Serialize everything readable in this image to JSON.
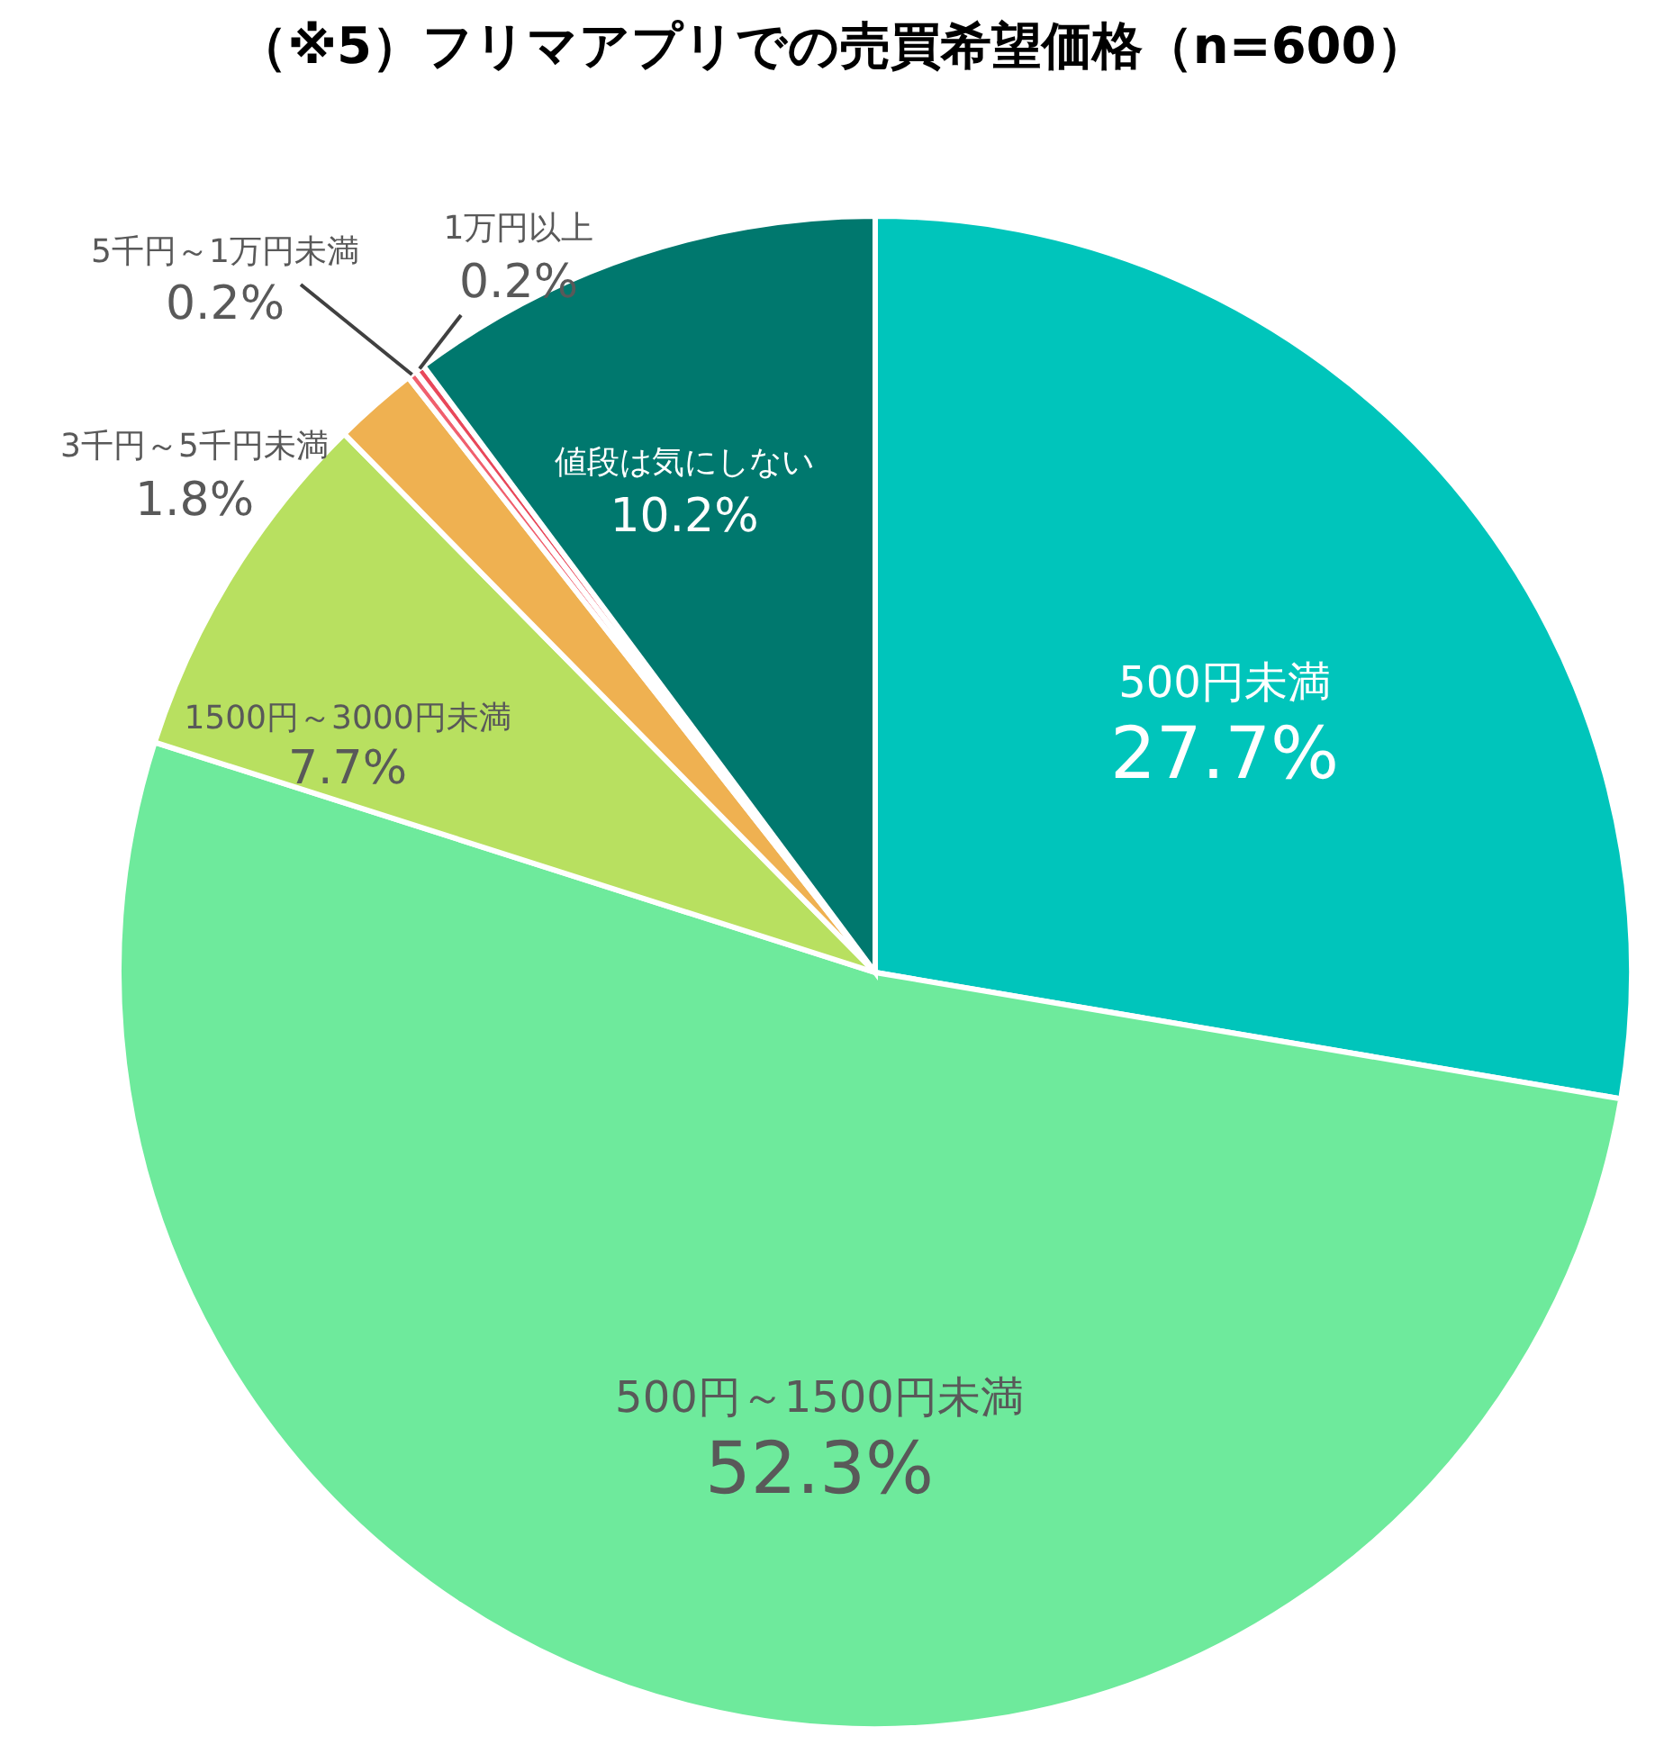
{
  "chart_data": {
    "type": "pie",
    "title": "（※5）フリマアプリでの売買希望価格（n=600）",
    "categories": [
      "500円未満",
      "500円～1500円未満",
      "1500円～3000円未満",
      "3千円～5千円未満",
      "5千円～1万円未満",
      "1万円以上",
      "値段は気にしない"
    ],
    "values": [
      27.7,
      52.3,
      7.7,
      1.8,
      0.2,
      0.2,
      10.2
    ],
    "colors": [
      "#00c5bb",
      "#6eea9c",
      "#b8e060",
      "#efb151",
      "#f0606e",
      "#e8485a",
      "#00786e"
    ],
    "value_labels": [
      "27.7%",
      "52.3%",
      "7.7%",
      "1.8%",
      "0.2%",
      "0.2%",
      "10.2%"
    ],
    "legend": false
  }
}
